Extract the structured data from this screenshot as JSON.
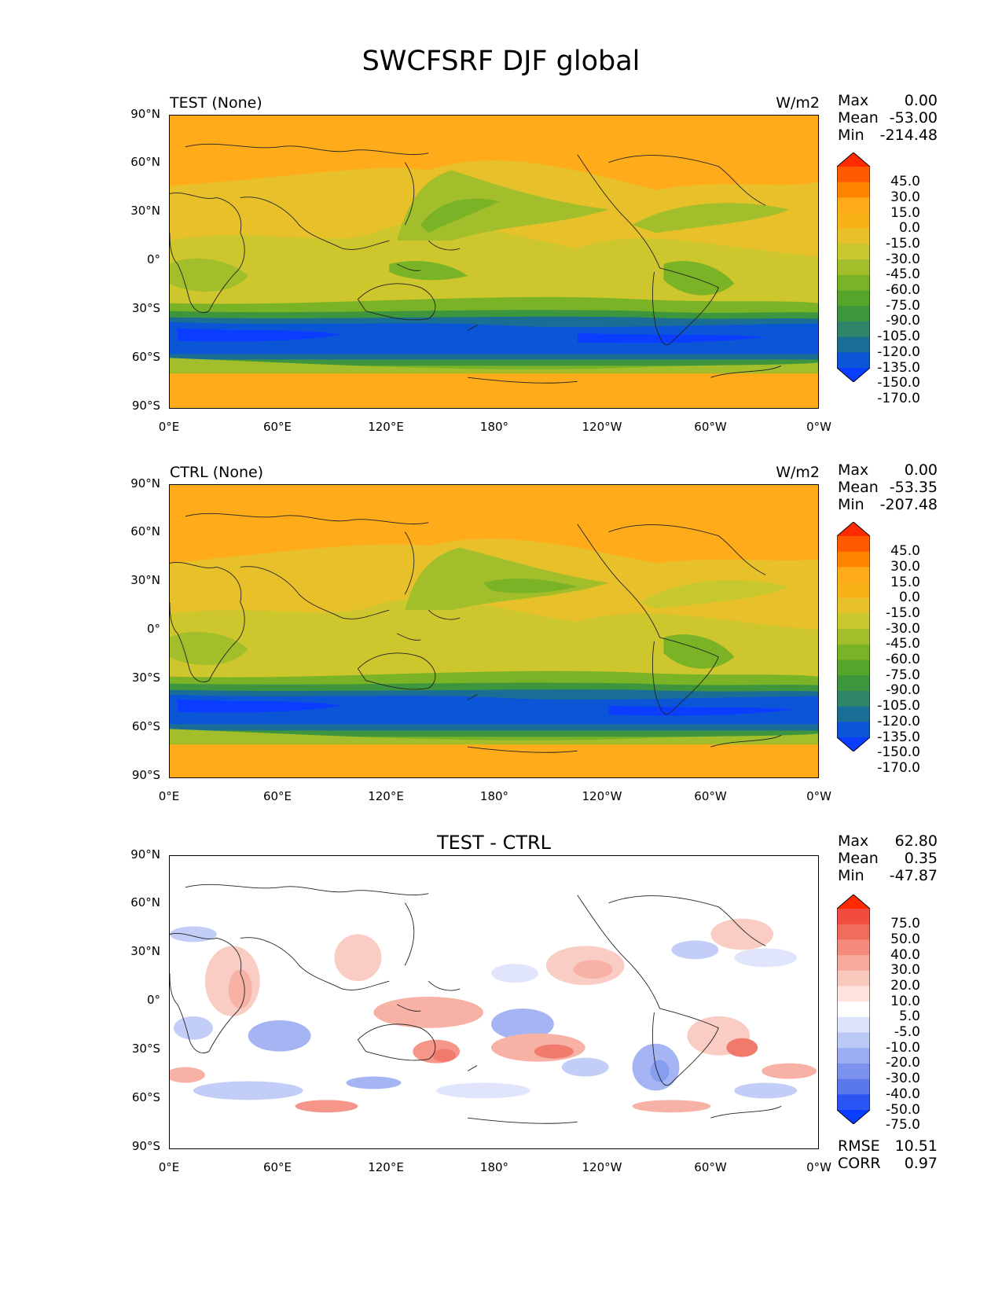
{
  "title": "SWCFSRF DJF global",
  "axes": {
    "lat_ticks": [
      "90°N",
      "60°N",
      "30°N",
      "0°",
      "30°S",
      "60°S",
      "90°S"
    ],
    "lon_ticks": [
      "0°E",
      "60°E",
      "120°E",
      "180°",
      "120°W",
      "60°W",
      "0°W"
    ]
  },
  "panels": [
    {
      "id": "test",
      "title_left": "TEST (None)",
      "title_right": "W/m2",
      "title_center": "",
      "stats": [
        {
          "label": "Max",
          "value": "0.00"
        },
        {
          "label": "Mean",
          "value": "-53.00"
        },
        {
          "label": "Min",
          "value": "-214.48"
        }
      ],
      "colorbar_labels": [
        "45.0",
        "30.0",
        "15.0",
        "0.0",
        "-15.0",
        "-30.0",
        "-45.0",
        "-60.0",
        "-75.0",
        "-90.0",
        "-105.0",
        "-120.0",
        "-135.0",
        "-150.0",
        "-170.0"
      ],
      "colorbar_colors": [
        "#ff2a00",
        "#ff5a00",
        "#ff8500",
        "#ffab1a",
        "#f7b218",
        "#e8c12a",
        "#c6c82e",
        "#a2bf2b",
        "#7ab326",
        "#56a42a",
        "#3d963d",
        "#2e8569",
        "#1a6e96",
        "#0a56d6",
        "#0a3dff"
      ]
    },
    {
      "id": "ctrl",
      "title_left": "CTRL (None)",
      "title_right": "W/m2",
      "title_center": "",
      "stats": [
        {
          "label": "Max",
          "value": "0.00"
        },
        {
          "label": "Mean",
          "value": "-53.35"
        },
        {
          "label": "Min",
          "value": "-207.48"
        }
      ],
      "colorbar_labels": [
        "45.0",
        "30.0",
        "15.0",
        "0.0",
        "-15.0",
        "-30.0",
        "-45.0",
        "-60.0",
        "-75.0",
        "-90.0",
        "-105.0",
        "-120.0",
        "-135.0",
        "-150.0",
        "-170.0"
      ],
      "colorbar_colors": [
        "#ff2a00",
        "#ff5a00",
        "#ff8500",
        "#ffab1a",
        "#f7b218",
        "#e8c12a",
        "#c6c82e",
        "#a2bf2b",
        "#7ab326",
        "#56a42a",
        "#3d963d",
        "#2e8569",
        "#1a6e96",
        "#0a56d6",
        "#0a3dff"
      ]
    },
    {
      "id": "diff",
      "title_left": "",
      "title_right": "",
      "title_center": "TEST - CTRL",
      "stats": [
        {
          "label": "Max",
          "value": "62.80"
        },
        {
          "label": "Mean",
          "value": "0.35"
        },
        {
          "label": "Min",
          "value": "-47.87"
        }
      ],
      "bottom_stats": [
        {
          "label": "RMSE",
          "value": "10.51"
        },
        {
          "label": "CORR",
          "value": "0.97"
        }
      ],
      "colorbar_labels": [
        "75.0",
        "50.0",
        "40.0",
        "30.0",
        "20.0",
        "10.0",
        "5.0",
        "-5.0",
        "-10.0",
        "-20.0",
        "-30.0",
        "-40.0",
        "-50.0",
        "-75.0"
      ],
      "colorbar_colors": [
        "#ff2a00",
        "#f24b3f",
        "#f06c5d",
        "#f48b7d",
        "#f7a99c",
        "#f9c8bd",
        "#fde3dc",
        "#ffffff",
        "#dde3fb",
        "#bcc9f7",
        "#9caef2",
        "#7b93ee",
        "#5a78ec",
        "#2b54f5",
        "#0a3dff"
      ]
    }
  ]
}
